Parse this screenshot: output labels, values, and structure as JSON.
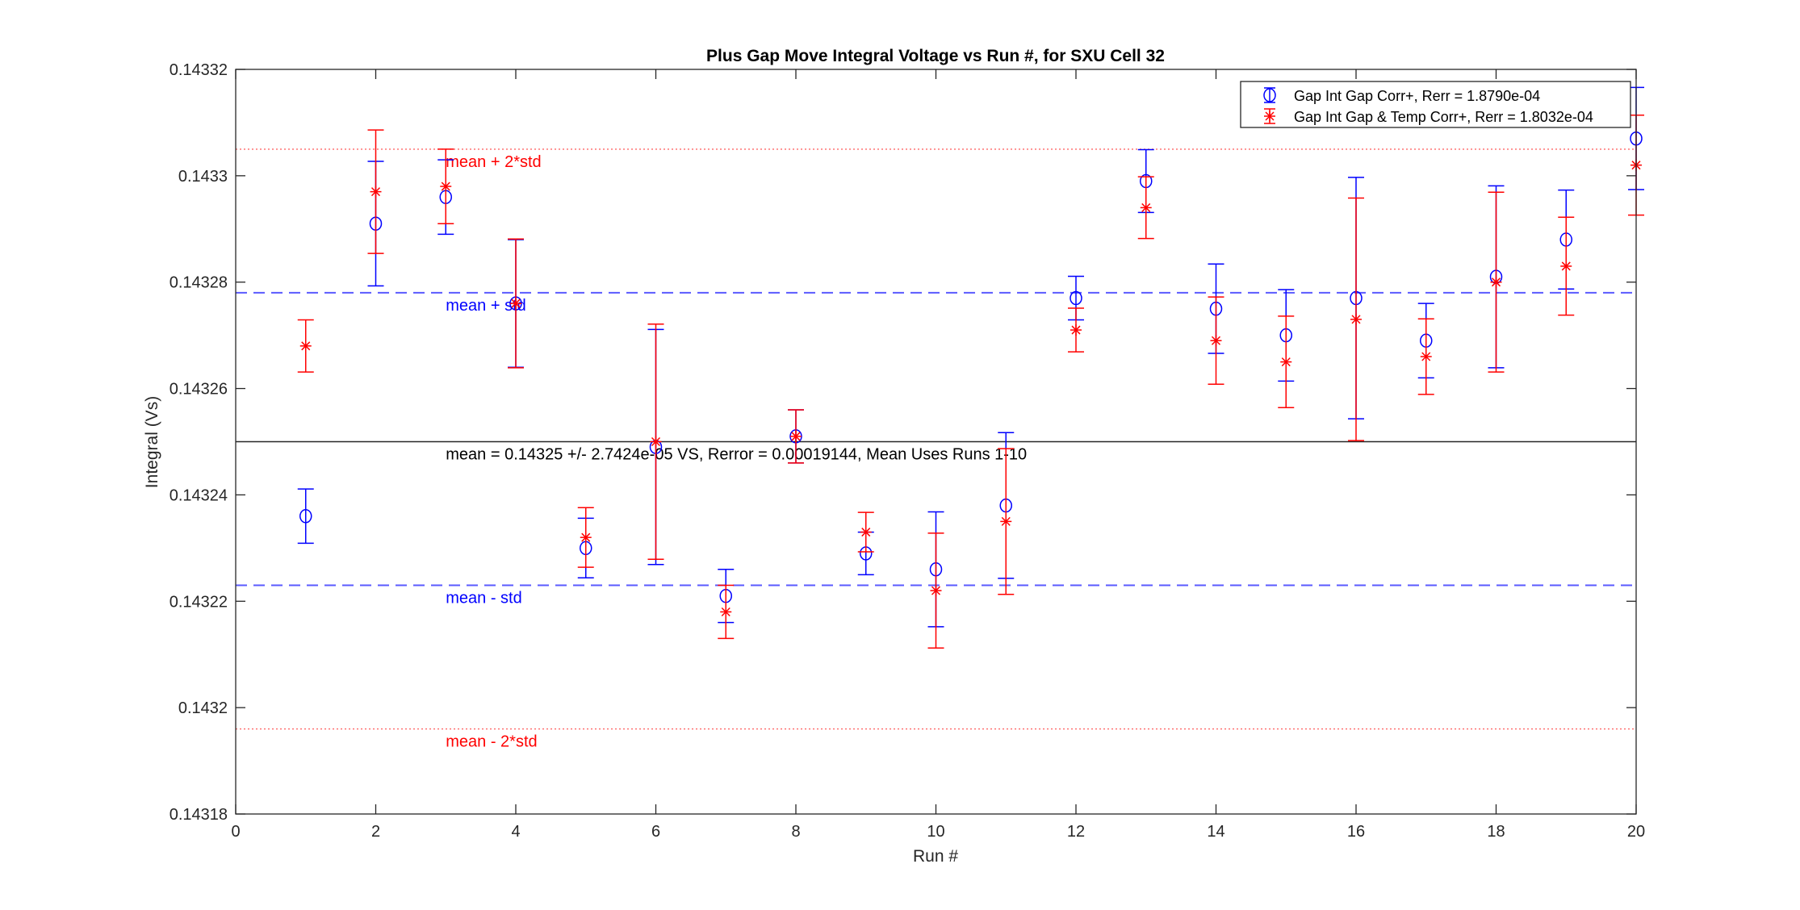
{
  "chart_data": {
    "type": "scatter",
    "title": "Plus Gap Move Integral Voltage vs Run #, for SXU Cell 32",
    "xlabel": "Run #",
    "ylabel": "Integral (Vs)",
    "xlim": [
      0,
      20
    ],
    "ylim": [
      0.14318,
      0.14332
    ],
    "xticks": [
      0,
      2,
      4,
      6,
      8,
      10,
      12,
      14,
      16,
      18,
      20
    ],
    "yticks": [
      "0.14318",
      "0.1432",
      "0.14322",
      "0.14324",
      "0.14326",
      "0.14328",
      "0.1433",
      "0.14332"
    ],
    "grid": false,
    "legend_position": "top-right",
    "series": [
      {
        "name": "Gap Int Gap Corr+, Rerr = 1.8790e-04",
        "color": "#0000ff",
        "marker": "circle",
        "x": [
          1,
          2,
          3,
          4,
          5,
          6,
          7,
          8,
          9,
          10,
          11,
          12,
          13,
          14,
          15,
          16,
          17,
          18,
          19,
          20
        ],
        "y": [
          0.143236,
          0.143291,
          0.143296,
          0.143276,
          0.14323,
          0.143249,
          0.143221,
          0.143251,
          0.143229,
          0.143226,
          0.143238,
          0.143277,
          0.143299,
          0.143275,
          0.14327,
          0.143277,
          0.143269,
          0.143281,
          0.143288,
          0.143307
        ],
        "err": [
          5.1e-06,
          1.17e-05,
          7e-06,
          1.2e-05,
          5.6e-06,
          2.21e-05,
          5e-06,
          5e-06,
          4e-06,
          1.08e-05,
          1.37e-05,
          4.1e-06,
          5.9e-06,
          8.4e-06,
          8.6e-06,
          2.27e-05,
          7e-06,
          1.71e-05,
          9.3e-06,
          9.6e-06
        ]
      },
      {
        "name": "Gap Int Gap & Temp  Corr+, Rerr = 1.8032e-04",
        "color": "#ff0000",
        "marker": "asterisk",
        "x": [
          1,
          2,
          3,
          4,
          5,
          6,
          7,
          8,
          9,
          10,
          11,
          12,
          13,
          14,
          15,
          16,
          17,
          18,
          19,
          20
        ],
        "y": [
          0.143268,
          0.143297,
          0.143298,
          0.143276,
          0.143232,
          0.14325,
          0.143218,
          0.143251,
          0.143233,
          0.143222,
          0.143235,
          0.143271,
          0.143294,
          0.143269,
          0.143265,
          0.143273,
          0.143266,
          0.14328,
          0.143283,
          0.143302
        ],
        "err": [
          4.9e-06,
          1.16e-05,
          7e-06,
          1.21e-05,
          5.6e-06,
          2.21e-05,
          5e-06,
          5e-06,
          3.7e-06,
          1.08e-05,
          1.37e-05,
          4.1e-06,
          5.8e-06,
          8.2e-06,
          8.6e-06,
          2.28e-05,
          7.1e-06,
          1.69e-05,
          9.2e-06,
          9.4e-06
        ]
      }
    ],
    "reference_lines": [
      {
        "label": "mean + 2*std",
        "y": 0.143305,
        "color": "#ff0000",
        "style": "dotted"
      },
      {
        "label": "mean + std",
        "y": 0.143278,
        "color": "#0000ff",
        "style": "dashed"
      },
      {
        "label": "mean = 0.14325 +/- 2.7424e-05 VS, Rerror = 0.00019144, Mean Uses Runs 1-10",
        "y": 0.14325,
        "color": "#000000",
        "style": "solid"
      },
      {
        "label": "mean - std",
        "y": 0.143223,
        "color": "#0000ff",
        "style": "dashed"
      },
      {
        "label": "mean - 2*std",
        "y": 0.143196,
        "color": "#ff0000",
        "style": "dotted"
      }
    ],
    "annotation_x": 3
  }
}
